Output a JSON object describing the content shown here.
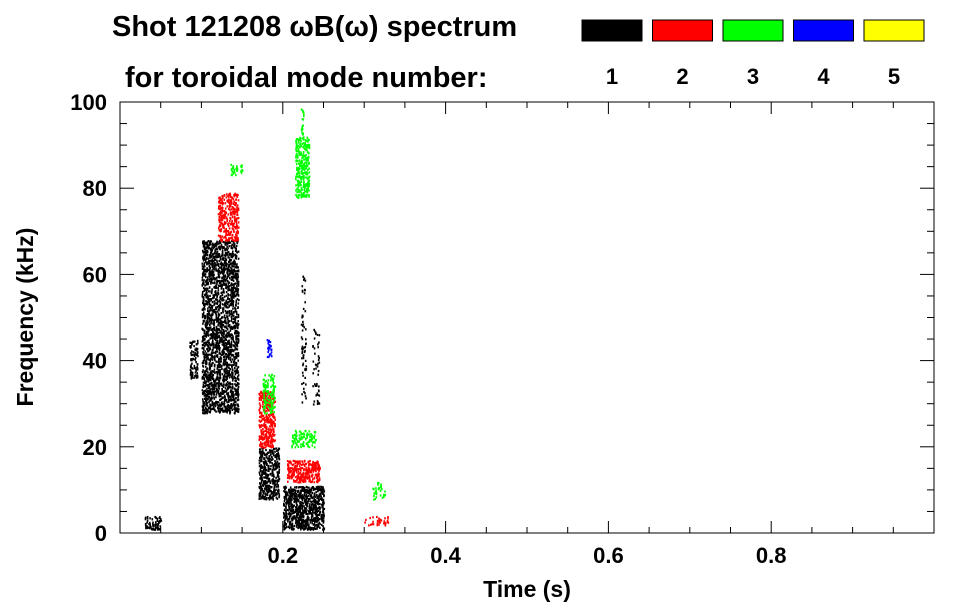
{
  "chart_data": {
    "type": "scatter",
    "title_line1": "Shot 121208 ωB(ω) spectrum",
    "title_line2": "for toroidal mode number:",
    "xlabel": "Time (s)",
    "ylabel": "Frequency (kHz)",
    "xlim": [
      0.0,
      1.0
    ],
    "ylim": [
      0,
      100
    ],
    "x_ticks": [
      0.2,
      0.4,
      0.6,
      0.8
    ],
    "x_tick_labels": [
      "0.2",
      "0.4",
      "0.6",
      "0.8"
    ],
    "y_ticks": [
      0,
      20,
      40,
      60,
      80,
      100
    ],
    "y_tick_labels": [
      "0",
      "20",
      "40",
      "60",
      "80",
      "100"
    ],
    "grid": false,
    "legend": {
      "placement": "top-right",
      "entries": [
        {
          "label": "1",
          "color": "#000000"
        },
        {
          "label": "2",
          "color": "#ff0000"
        },
        {
          "label": "3",
          "color": "#00ff00"
        },
        {
          "label": "4",
          "color": "#0000ff"
        },
        {
          "label": "5",
          "color": "#ffff00"
        }
      ]
    },
    "series": [
      {
        "mode": 1,
        "color": "#000000",
        "clusters": [
          {
            "x0": 0.1,
            "x1": 0.145,
            "y0": 28,
            "y1": 68,
            "density": 0.8
          },
          {
            "x0": 0.085,
            "x1": 0.095,
            "y0": 36,
            "y1": 45,
            "density": 0.6
          },
          {
            "x0": 0.17,
            "x1": 0.195,
            "y0": 8,
            "y1": 20,
            "density": 0.9
          },
          {
            "x0": 0.2,
            "x1": 0.25,
            "y0": 1,
            "y1": 11,
            "density": 1.0
          },
          {
            "x0": 0.03,
            "x1": 0.05,
            "y0": 1,
            "y1": 4,
            "density": 0.7
          },
          {
            "x0": 0.222,
            "x1": 0.228,
            "y0": 28,
            "y1": 60,
            "density": 0.2
          },
          {
            "x0": 0.236,
            "x1": 0.244,
            "y0": 30,
            "y1": 48,
            "density": 0.2
          }
        ]
      },
      {
        "mode": 2,
        "color": "#ff0000",
        "clusters": [
          {
            "x0": 0.12,
            "x1": 0.145,
            "y0": 68,
            "y1": 79,
            "density": 0.7
          },
          {
            "x0": 0.17,
            "x1": 0.19,
            "y0": 20,
            "y1": 33,
            "density": 0.8
          },
          {
            "x0": 0.205,
            "x1": 0.245,
            "y0": 12,
            "y1": 17,
            "density": 0.9
          },
          {
            "x0": 0.3,
            "x1": 0.33,
            "y0": 2,
            "y1": 4,
            "density": 0.3
          }
        ]
      },
      {
        "mode": 3,
        "color": "#00ff00",
        "clusters": [
          {
            "x0": 0.215,
            "x1": 0.232,
            "y0": 78,
            "y1": 92,
            "density": 0.8
          },
          {
            "x0": 0.222,
            "x1": 0.225,
            "y0": 92,
            "y1": 99,
            "density": 0.5
          },
          {
            "x0": 0.175,
            "x1": 0.19,
            "y0": 28,
            "y1": 37,
            "density": 0.5
          },
          {
            "x0": 0.21,
            "x1": 0.24,
            "y0": 20,
            "y1": 24,
            "density": 0.5
          },
          {
            "x0": 0.135,
            "x1": 0.15,
            "y0": 83,
            "y1": 86,
            "density": 0.4
          },
          {
            "x0": 0.31,
            "x1": 0.325,
            "y0": 8,
            "y1": 12,
            "density": 0.3
          }
        ]
      },
      {
        "mode": 4,
        "color": "#0000ff",
        "clusters": [
          {
            "x0": 0.18,
            "x1": 0.186,
            "y0": 41,
            "y1": 45,
            "density": 0.6
          }
        ]
      }
    ]
  }
}
